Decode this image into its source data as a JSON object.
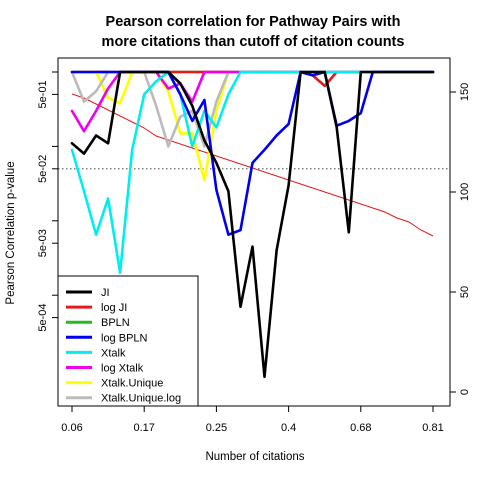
{
  "chart_data": {
    "type": "line",
    "title": [
      "Pearson correlation for Pathway Pairs with",
      "more citations than cutoff of citation counts"
    ],
    "xlabel": "Number of citations",
    "ylabel": "Pearson Correlation p-value",
    "x": [
      0.06,
      0.085,
      0.11,
      0.135,
      0.16,
      0.185,
      0.21,
      0.235,
      0.26,
      0.285,
      0.31,
      0.335,
      0.36,
      0.385,
      0.41,
      0.435,
      0.46,
      0.485,
      0.51,
      0.535,
      0.56,
      0.585,
      0.61,
      0.635,
      0.66,
      0.685,
      0.71,
      0.735,
      0.76,
      0.785,
      0.81
    ],
    "x_tick_labels": [
      "0.06",
      "0.17",
      "0.25",
      "0.4",
      "0.68",
      "0.81"
    ],
    "xlim": [
      0.06,
      0.81
    ],
    "y_scale": "log",
    "ylim": [
      5e-05,
      1
    ],
    "y_tick_labels": [
      "5e-04",
      "5e-03",
      "5e-02",
      "5e-01"
    ],
    "y_ticks": [
      0.0005,
      0.005,
      0.05,
      0.5
    ],
    "y_minor_ticks": [
      0.001,
      0.01,
      0.1,
      1
    ],
    "right_axis": {
      "ylim": [
        0,
        160
      ],
      "tick_labels": [
        "0",
        "50",
        "100",
        "150"
      ],
      "ticks": [
        0,
        50,
        100,
        150
      ]
    },
    "reference_line": {
      "y": 0.05,
      "style": "dotted",
      "color": "#555555"
    },
    "series": [
      {
        "name": "JI",
        "color": "#000000",
        "width": 2.6,
        "values": [
          0.11,
          0.08,
          0.14,
          0.11,
          1,
          1,
          1,
          1,
          1,
          0.7,
          0.35,
          0.12,
          0.06,
          0.025,
          0.0007,
          0.0045,
          8e-05,
          0.004,
          0.03,
          1,
          1,
          1,
          0.18,
          0.007,
          1,
          1,
          1,
          1,
          1,
          1,
          1
        ]
      },
      {
        "name": "log JI",
        "color": "#e41a1c",
        "width": 2.6,
        "values": [
          1,
          1,
          1,
          1,
          1,
          1,
          1,
          1,
          1,
          1,
          1,
          1,
          1,
          1,
          1,
          1,
          1,
          1,
          1,
          1,
          0.9,
          0.65,
          1,
          1,
          1,
          1,
          1,
          1,
          1,
          1,
          1
        ]
      },
      {
        "name": "BPLN",
        "color": "#22bb22",
        "width": 2.6,
        "values": [
          1,
          1,
          1,
          1,
          1,
          1,
          1,
          1,
          1,
          1,
          1,
          1,
          1,
          1,
          1,
          1,
          1,
          1,
          1,
          1,
          1,
          1,
          1,
          1,
          1,
          1,
          1,
          1,
          1,
          1,
          1
        ]
      },
      {
        "name": "log BPLN",
        "color": "#0000ee",
        "width": 2.6,
        "values": [
          1,
          1,
          1,
          1,
          1,
          1,
          1,
          1,
          1,
          0.5,
          0.22,
          0.42,
          0.026,
          0.0065,
          0.0075,
          0.06,
          0.09,
          0.14,
          0.2,
          1,
          0.9,
          1,
          0.19,
          0.22,
          0.28,
          1,
          1,
          1,
          1,
          1,
          1
        ]
      },
      {
        "name": "Xtalk",
        "color": "#00eeee",
        "width": 2.6,
        "values": [
          0.09,
          0.025,
          0.0065,
          0.02,
          0.002,
          0.09,
          0.5,
          0.75,
          1,
          0.5,
          0.1,
          0.3,
          0.18,
          0.5,
          1,
          1,
          1,
          1,
          1,
          1,
          1,
          1,
          1,
          1,
          1,
          1,
          1,
          1,
          1,
          1,
          1
        ]
      },
      {
        "name": "log Xtalk",
        "color": "#ee00ee",
        "width": 2.6,
        "values": [
          0.3,
          0.16,
          0.3,
          0.6,
          1,
          1,
          1,
          1,
          0.6,
          0.7,
          0.4,
          1,
          1,
          1,
          1,
          1,
          1,
          1,
          1,
          1,
          1,
          1,
          1,
          1,
          1,
          1,
          1,
          1,
          1,
          1,
          1
        ]
      },
      {
        "name": "Xtalk.Unique",
        "color": "#ffff00",
        "width": 2.6,
        "values": [
          1,
          1,
          1,
          0.45,
          0.38,
          1,
          1,
          1,
          0.55,
          0.15,
          0.15,
          0.035,
          0.3,
          1,
          1,
          1,
          1,
          1,
          1,
          1,
          1,
          1,
          1,
          1,
          1,
          1,
          1,
          1,
          1,
          1,
          1
        ]
      },
      {
        "name": "Xtalk.Unique.log",
        "color": "#bbbbbb",
        "width": 2.6,
        "values": [
          1,
          0.4,
          0.55,
          1,
          1,
          1,
          1,
          0.35,
          0.1,
          0.25,
          0.3,
          0.1,
          0.4,
          1,
          1,
          1,
          1,
          1,
          1,
          1,
          1,
          1,
          1,
          1,
          1,
          1,
          1,
          1,
          1,
          1,
          1
        ]
      }
    ],
    "secondary_line": {
      "axis": "right",
      "color": "#e41a1c",
      "width": 1,
      "values": [
        149,
        147,
        144,
        141,
        138,
        135,
        132,
        128,
        126,
        124,
        122,
        120,
        118,
        116,
        114,
        112,
        110,
        108,
        106,
        104,
        102,
        100,
        98,
        96,
        94,
        92,
        90,
        87,
        85,
        81,
        78
      ]
    },
    "legend": {
      "position": "bottom-left",
      "entries": [
        "JI",
        "log JI",
        "BPLN",
        "log BPLN",
        "Xtalk",
        "log Xtalk",
        "Xtalk.Unique",
        "Xtalk.Unique.log"
      ],
      "colors": [
        "#000000",
        "#e41a1c",
        "#22bb22",
        "#0000ee",
        "#00eeee",
        "#ee00ee",
        "#ffff00",
        "#bbbbbb"
      ]
    }
  }
}
